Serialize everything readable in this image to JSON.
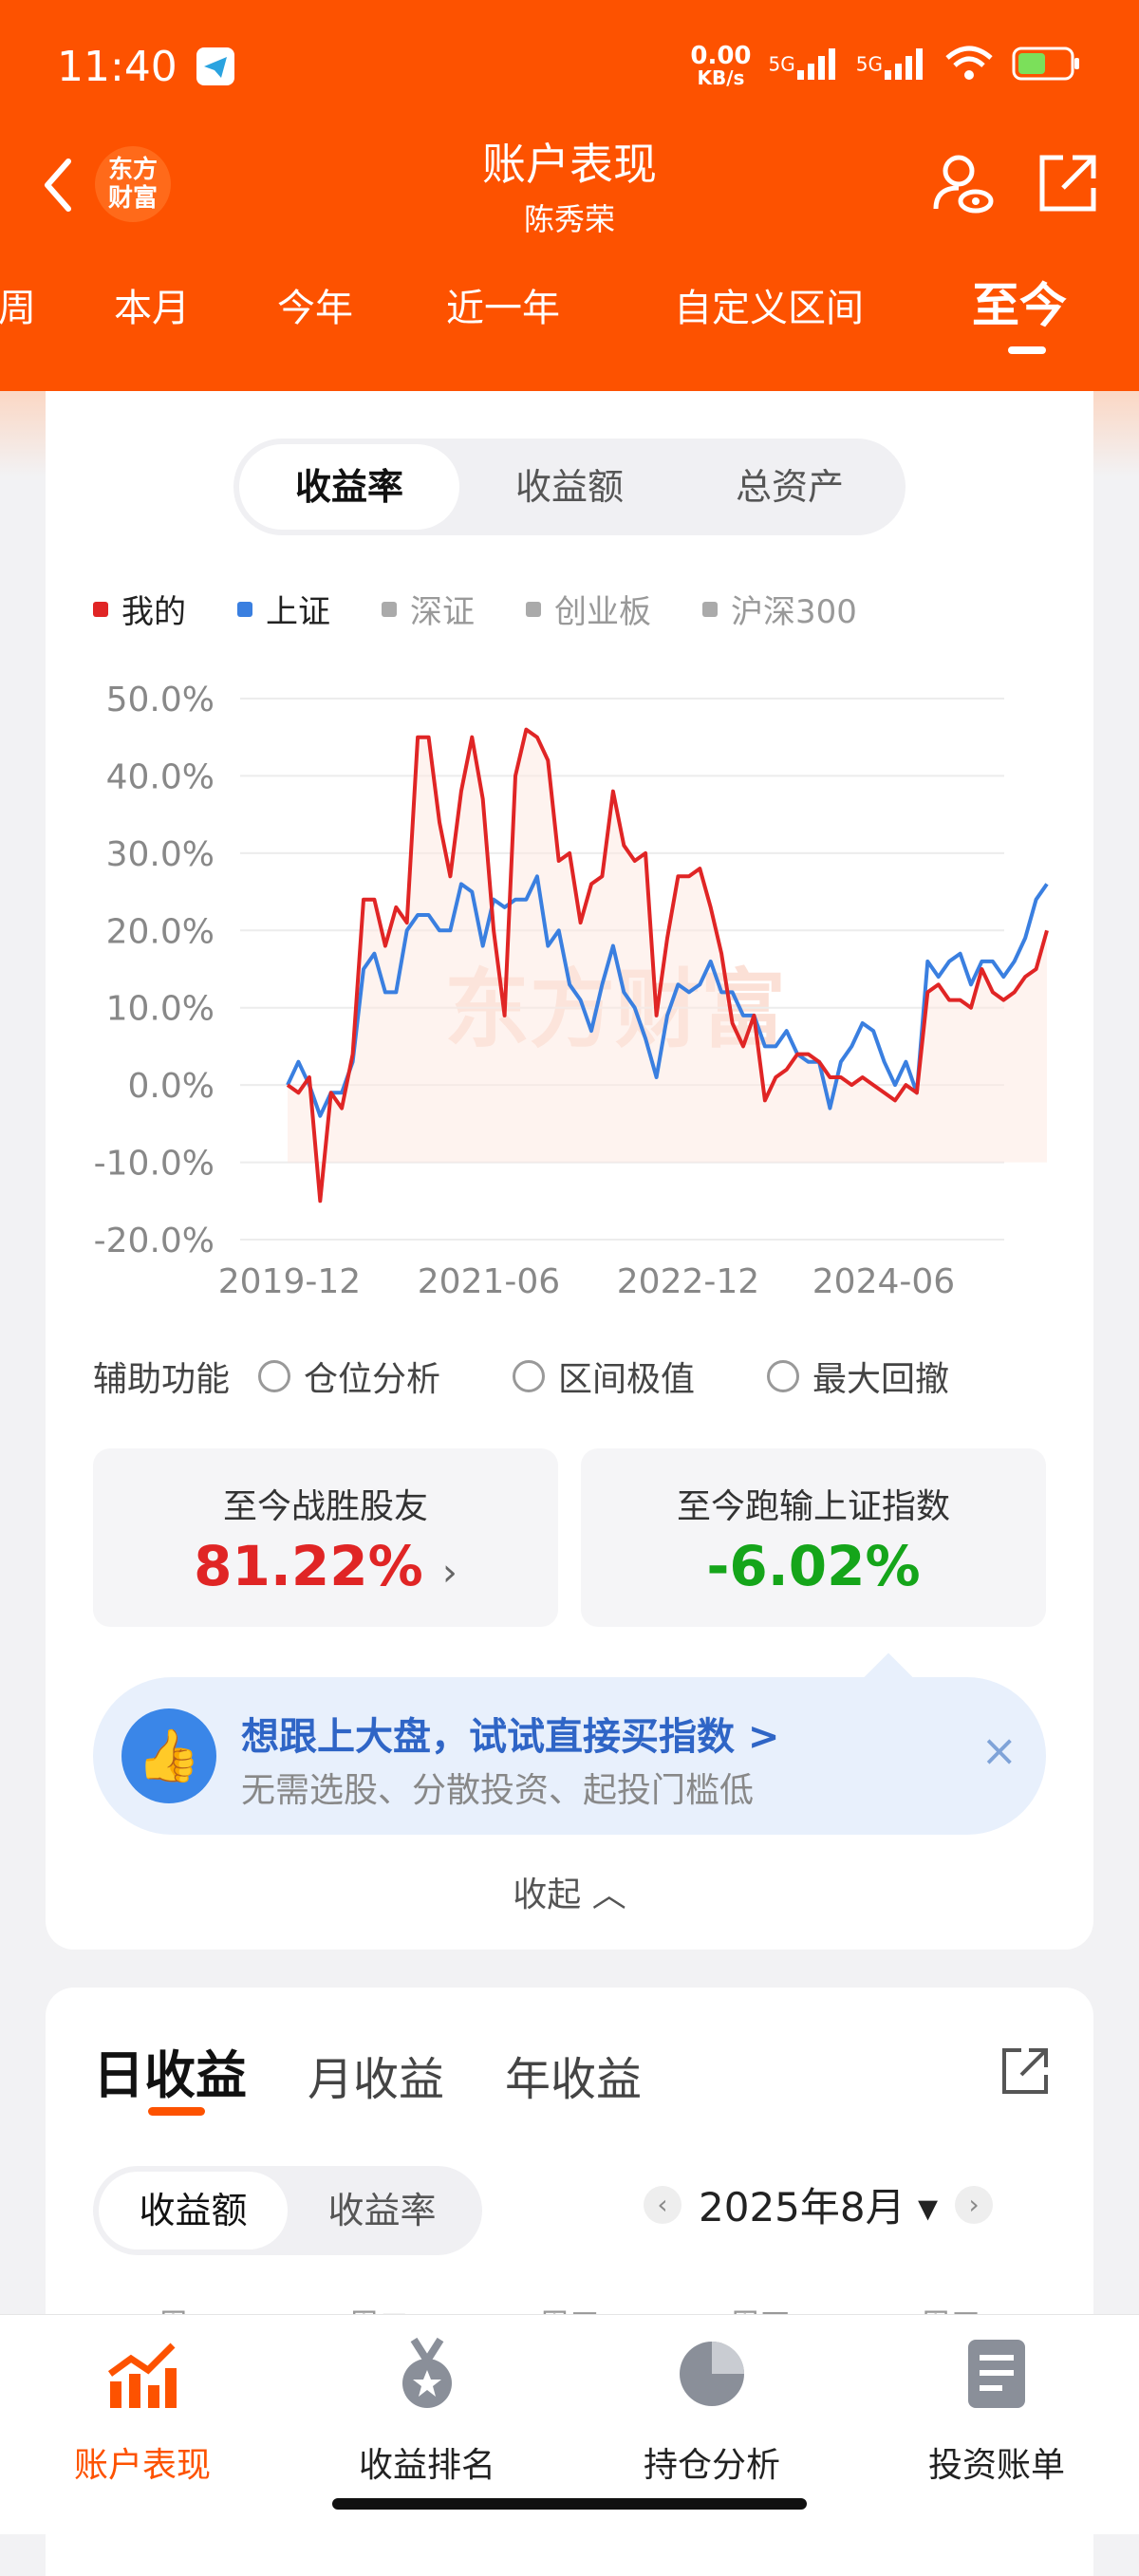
{
  "status": {
    "time": "11:40",
    "net_speed": "0.00",
    "net_unit": "KB/s",
    "signal1": "5G",
    "signal2": "5G",
    "battery": "⚡"
  },
  "header": {
    "title": "账户表现",
    "subtitle": "陈秀荣",
    "logo_line1": "东方",
    "logo_line2": "财富"
  },
  "periods": [
    {
      "label": "周"
    },
    {
      "label": "本月"
    },
    {
      "label": "今年"
    },
    {
      "label": "近一年"
    },
    {
      "label": "自定义区间"
    },
    {
      "label": "至今"
    }
  ],
  "metric_tabs": [
    {
      "label": "收益率"
    },
    {
      "label": "收益额"
    },
    {
      "label": "总资产"
    }
  ],
  "legend": [
    {
      "label": "我的",
      "color": "#e02525"
    },
    {
      "label": "上证",
      "color": "#3a7fe0"
    },
    {
      "label": "深证",
      "color": "#aaaaaa"
    },
    {
      "label": "创业板",
      "color": "#aaaaaa"
    },
    {
      "label": "沪深300",
      "color": "#aaaaaa"
    }
  ],
  "chart_data": {
    "type": "line",
    "title": "",
    "xlabel": "",
    "ylabel": "",
    "x_tick_labels": [
      "2019-12",
      "2021-06",
      "2022-12",
      "2024-06"
    ],
    "y_tick_labels": [
      "50.0%",
      "40.0%",
      "30.0%",
      "20.0%",
      "10.0%",
      "0.0%",
      "-10.0%",
      "-20.0%"
    ],
    "ylim": [
      -20,
      50
    ],
    "watermark": "东方财富",
    "series": [
      {
        "name": "我的",
        "color": "#e02525",
        "values": [
          0,
          -1,
          1,
          -15,
          -1,
          -3,
          4,
          24,
          24,
          18,
          23,
          21,
          45,
          45,
          34,
          27,
          38,
          45,
          37,
          20,
          9,
          40,
          46,
          45,
          42,
          29,
          30,
          21,
          26,
          27,
          38,
          31,
          29,
          30,
          9,
          19,
          27,
          27,
          28,
          23,
          17,
          8,
          5,
          9,
          -2,
          1,
          2,
          4,
          4,
          3,
          1,
          1,
          0,
          1,
          0,
          -1,
          -2,
          0,
          -1,
          12,
          13,
          11,
          11,
          10,
          15,
          12,
          11,
          12,
          14,
          15,
          20
        ]
      },
      {
        "name": "上证",
        "color": "#3a7fe0",
        "values": [
          0,
          3,
          0,
          -4,
          -1,
          -1,
          3,
          15,
          17,
          12,
          12,
          20,
          22,
          22,
          20,
          20,
          26,
          25,
          18,
          24,
          23,
          24,
          24,
          27,
          18,
          20,
          13,
          11,
          7,
          13,
          18,
          12,
          10,
          6,
          1,
          9,
          13,
          12,
          13,
          16,
          12,
          12,
          9,
          9,
          5,
          5,
          7,
          4,
          3,
          3,
          -3,
          3,
          5,
          8,
          7,
          3,
          0,
          3,
          -1,
          16,
          14,
          16,
          17,
          13,
          16,
          16,
          14,
          16,
          19,
          24,
          26
        ]
      }
    ]
  },
  "aux": {
    "label": "辅助功能",
    "options": [
      {
        "label": "仓位分析"
      },
      {
        "label": "区间极值"
      },
      {
        "label": "最大回撤"
      }
    ]
  },
  "stats": {
    "beat": {
      "label": "至今战胜股友",
      "value": "81.22%",
      "arrow": "›"
    },
    "vs_index": {
      "label": "至今跑输上证指数",
      "value": "-6.02%"
    }
  },
  "promo": {
    "title": "想跟上大盘，试试直接买指数 >",
    "subtitle": "无需选股、分散投资、起投门槛低",
    "close": "×",
    "icon": "👍"
  },
  "collapse": {
    "label": "收起 ︿"
  },
  "returns": {
    "tabs": [
      {
        "label": "日收益"
      },
      {
        "label": "月收益"
      },
      {
        "label": "年收益"
      }
    ],
    "seg": [
      {
        "label": "收益额"
      },
      {
        "label": "收益率"
      }
    ],
    "month": "2025年8月 ▾",
    "weekdays": [
      "周一",
      "周二",
      "周三",
      "周四",
      "周五"
    ]
  },
  "nav": [
    {
      "label": "账户表现",
      "icon": "trend-chart-icon"
    },
    {
      "label": "收益排名",
      "icon": "medal-icon"
    },
    {
      "label": "持仓分析",
      "icon": "pie-chart-icon"
    },
    {
      "label": "投资账单",
      "icon": "bill-icon"
    }
  ]
}
